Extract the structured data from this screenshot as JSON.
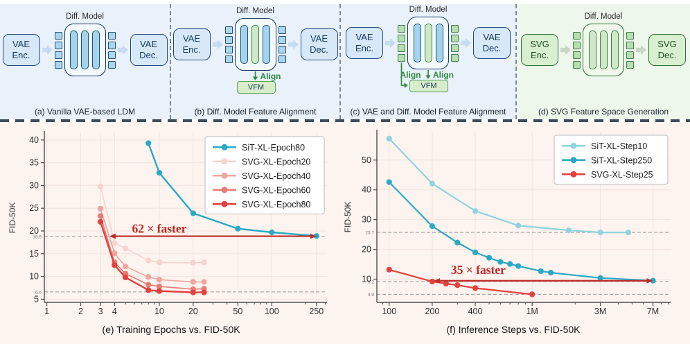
{
  "diagrams": {
    "diff_model_label": "Diff. Model",
    "align_label": "Align",
    "vfm_label": "VFM",
    "panels": [
      {
        "caption": "(a) Vanilla VAE-based LDM",
        "enc": "VAE Enc.",
        "dec": "VAE Dec.",
        "theme": "blue",
        "bars": [
          "blue",
          "blue",
          "blue"
        ],
        "tokens": "blue",
        "vfm": false,
        "aligns": [],
        "bg": "#e9f1fa"
      },
      {
        "caption": "(b) Diff. Model Feature Alignment",
        "enc": "VAE Enc.",
        "dec": "VAE Dec.",
        "theme": "blue",
        "bars": [
          "blue",
          "green",
          "blue"
        ],
        "tokens": "blue",
        "vfm": true,
        "aligns": [
          "diff"
        ],
        "bg": "#e9f1fa"
      },
      {
        "caption": "(c) VAE and Diff. Model Feature Alignment",
        "enc": "VAE Enc.",
        "dec": "VAE Dec.",
        "theme": "blue",
        "bars": [
          "blue",
          "green",
          "blue"
        ],
        "tokens": "green",
        "vfm": true,
        "aligns": [
          "vae",
          "diff"
        ],
        "bg": "#e9f1fa"
      },
      {
        "caption": "(d) SVG Feature Space Generation",
        "enc": "SVG Enc.",
        "dec": "SVG Dec.",
        "theme": "green",
        "bars": [
          "green",
          "green",
          "green"
        ],
        "tokens": "green",
        "vfm": false,
        "aligns": [],
        "bg": "#eef7eb"
      }
    ],
    "palette": {
      "arrow_blue": "#c5dcf2",
      "arrow_green": "#c9d4c6",
      "align_green": "#2f8a3d",
      "vfm_border": "#5aa060"
    }
  },
  "chart_data": [
    {
      "type": "line",
      "title": "(e) Training Epochs vs. FID-50K",
      "xlabel": "Training Epochs",
      "ylabel": "FID-50K",
      "x_scale": "log",
      "x_domain": [
        0.95,
        310
      ],
      "x_ticks": [
        1,
        2,
        3,
        4,
        10,
        20,
        50,
        100,
        250
      ],
      "x_tick_labels": [
        "1",
        "2",
        "3",
        "4",
        "10",
        "20",
        "50",
        "100",
        "250"
      ],
      "y_domain": [
        4.3,
        41.5
      ],
      "y_ticks": [
        5,
        10,
        15,
        20,
        25,
        30,
        35,
        40
      ],
      "grid": true,
      "legend_position": "top-right",
      "ref_lines": [
        {
          "y": 18.8,
          "label": "18.8"
        },
        {
          "y": 6.6,
          "label": "6.6"
        }
      ],
      "annotation": {
        "text": "62 × faster",
        "x1": 3.6,
        "x2": 250,
        "y": 18.85,
        "label_x": 10,
        "label_y": 19.6,
        "color": "#bf2b27"
      },
      "series": [
        {
          "name": "SiT-XL-Epoch80",
          "color": "#29a9c5",
          "width": 2.4,
          "x": [
            8,
            10,
            20,
            50,
            100,
            250
          ],
          "y": [
            39.3,
            32.8,
            23.9,
            20.5,
            19.7,
            18.9
          ]
        },
        {
          "name": "SVG-XL-Epoch20",
          "color": "#f7d3ce",
          "width": 1.6,
          "x": [
            3,
            4,
            5,
            8,
            10,
            20,
            25
          ],
          "y": [
            29.8,
            17.3,
            16.2,
            13.5,
            13.1,
            13.0,
            13.1
          ]
        },
        {
          "name": "SVG-XL-Epoch40",
          "color": "#f0a49f",
          "width": 1.6,
          "x": [
            3,
            4,
            5,
            8,
            10,
            20,
            25
          ],
          "y": [
            24.9,
            15.1,
            12.2,
            9.9,
            9.3,
            8.8,
            8.8
          ]
        },
        {
          "name": "SVG-XL-Epoch60",
          "color": "#ea7a74",
          "width": 1.6,
          "x": [
            3,
            4,
            5,
            8,
            10,
            20,
            25
          ],
          "y": [
            23.3,
            13.1,
            10.6,
            8.2,
            7.8,
            7.2,
            7.3
          ]
        },
        {
          "name": "SVG-XL-Epoch80",
          "color": "#e2413d",
          "width": 2.4,
          "x": [
            3,
            4,
            5,
            8,
            10,
            20,
            25
          ],
          "y": [
            22.0,
            12.5,
            9.8,
            7.0,
            6.8,
            6.5,
            6.5
          ]
        }
      ]
    },
    {
      "type": "line",
      "title": "(f) Inference Steps vs. FID-50K",
      "xlabel": "Inference Steps",
      "ylabel": "FID-50K",
      "x_scale": "log",
      "x_domain": [
        0.082,
        9.3
      ],
      "x_ticks": [
        0.1,
        0.2,
        0.4,
        1,
        3,
        7
      ],
      "x_tick_labels": [
        "100",
        "200",
        "400",
        "1M",
        "3M",
        "7M"
      ],
      "y_domain": [
        2.2,
        59.5
      ],
      "y_ticks": [
        10,
        20,
        30,
        40,
        50
      ],
      "grid": true,
      "legend_position": "top-right",
      "ref_lines": [
        {
          "y": 25.7,
          "label": "25.7"
        },
        {
          "y": 9.2,
          "label": "9.2"
        },
        {
          "y": 4.9,
          "label": "4.9"
        }
      ],
      "annotation": {
        "text": "35 × faster",
        "x1": 0.205,
        "x2": 7,
        "y": 9.45,
        "label_x": 0.42,
        "label_y": 11.7,
        "color": "#bf2b27"
      },
      "series": [
        {
          "name": "SiT-XL-Step10",
          "color": "#8fd4de",
          "width": 2.2,
          "x": [
            0.1,
            0.2,
            0.4,
            0.8,
            1.8,
            3,
            4.7
          ],
          "y": [
            57.2,
            42.1,
            32.9,
            28.0,
            26.4,
            25.7,
            25.7
          ]
        },
        {
          "name": "SiT-XL-Step250",
          "color": "#29a9c5",
          "width": 2.2,
          "x": [
            0.1,
            0.2,
            0.3,
            0.4,
            0.5,
            0.6,
            0.7,
            0.8,
            1.15,
            1.35,
            3,
            7
          ],
          "y": [
            42.6,
            27.8,
            22.3,
            19.0,
            17.2,
            15.8,
            15.1,
            14.4,
            12.7,
            12.2,
            10.4,
            9.5
          ]
        },
        {
          "name": "SVG-XL-Step25",
          "color": "#e2413d",
          "width": 2.2,
          "x": [
            0.1,
            0.2,
            0.25,
            0.3,
            0.4,
            1
          ],
          "y": [
            13.2,
            9.2,
            8.5,
            8.0,
            7.0,
            4.9
          ]
        }
      ]
    }
  ]
}
